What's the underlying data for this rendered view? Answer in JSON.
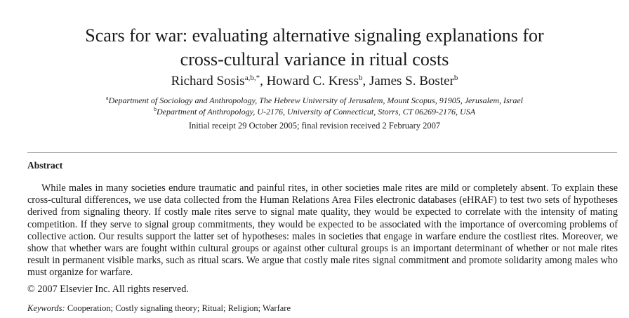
{
  "paper": {
    "title_line1": "Scars for war: evaluating alternative signaling explanations for",
    "title_line2": "cross-cultural variance in ritual costs",
    "authors": [
      {
        "name": "Richard Sosis",
        "marks": "a,b,*",
        "sep": ", "
      },
      {
        "name": "Howard C. Kress",
        "marks": "b",
        "sep": ", "
      },
      {
        "name": "James S. Boster",
        "marks": "b",
        "sep": ""
      }
    ],
    "affiliations": [
      {
        "mark": "a",
        "text": "Department of Sociology and Anthropology, The Hebrew University of Jerusalem, Mount Scopus, 91905, Jerusalem, Israel"
      },
      {
        "mark": "b",
        "text": "Department of Anthropology, U-2176, University of Connecticut, Storrs, CT 06269-2176, USA"
      }
    ],
    "received": "Initial receipt 29 October 2005; final revision received 2 February 2007"
  },
  "abstract": {
    "heading": "Abstract",
    "body": "While males in many societies endure traumatic and painful rites, in other societies male rites are mild or completely absent. To explain these cross-cultural differences, we use data collected from the Human Relations Area Files electronic databases (eHRAF) to test two sets of hypotheses derived from signaling theory. If costly male rites serve to signal mate quality, they would be expected to correlate with the intensity of mating competition. If they serve to signal group commitments, they would be expected to be associated with the importance of overcoming problems of collective action. Our results support the latter set of hypotheses: males in societies that engage in warfare endure the costliest rites. Moreover, we show that whether wars are fought within cultural groups or against other cultural groups is an important determinant of whether or not male rites result in permanent visible marks, such as ritual scars. We argue that costly male rites signal commitment and promote solidarity among males who must organize for warfare.",
    "copyright": "© 2007 Elsevier Inc. All rights reserved."
  },
  "keywords": {
    "label": "Keywords:",
    "text": "Cooperation; Costly signaling theory; Ritual; Religion; Warfare"
  }
}
